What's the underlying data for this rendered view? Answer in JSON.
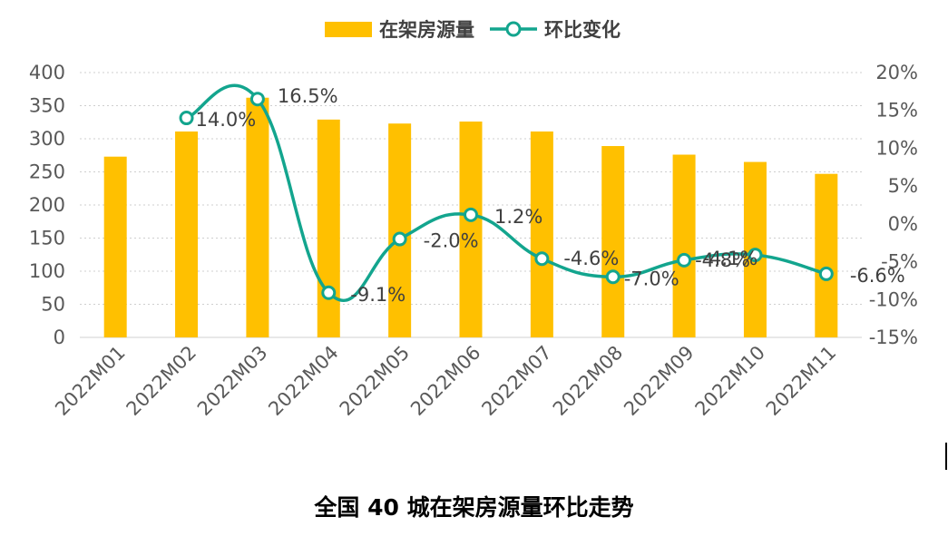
{
  "chart_data": {
    "type": "bar+line",
    "categories": [
      "2022M01",
      "2022M02",
      "2022M03",
      "2022M04",
      "2022M05",
      "2022M06",
      "2022M07",
      "2022M08",
      "2022M09",
      "2022M10",
      "2022M11"
    ],
    "series": [
      {
        "name": "在架房源量",
        "kind": "bar",
        "axis": "left",
        "color": "#FFC000",
        "values": [
          273,
          311,
          362,
          329,
          323,
          326,
          311,
          289,
          276,
          265,
          247
        ]
      },
      {
        "name": "环比变化",
        "kind": "line",
        "axis": "right",
        "color": "#13A58E",
        "values": [
          null,
          14.0,
          16.5,
          -9.1,
          -2.0,
          1.2,
          -4.6,
          -7.0,
          -4.8,
          -4.1,
          -6.6
        ],
        "labels": [
          null,
          "14.0%",
          "16.5%",
          "-9.1%",
          "-2.0%",
          "1.2%",
          "-4.6%",
          "-7.0%",
          "-4.8%",
          "-4.1%",
          "-6.6%"
        ]
      }
    ],
    "y_left": {
      "min": 0,
      "max": 400,
      "step": 50,
      "ticks": [
        "0",
        "50",
        "100",
        "150",
        "200",
        "250",
        "300",
        "350",
        "400"
      ]
    },
    "y_right": {
      "min": -15,
      "max": 20,
      "step": 5,
      "ticks": [
        "-15%",
        "-10%",
        "-5%",
        "0%",
        "5%",
        "10%",
        "15%",
        "20%"
      ]
    },
    "grid": true,
    "legend": "top-center"
  },
  "caption": "全国 40 城在架房源量环比走势"
}
